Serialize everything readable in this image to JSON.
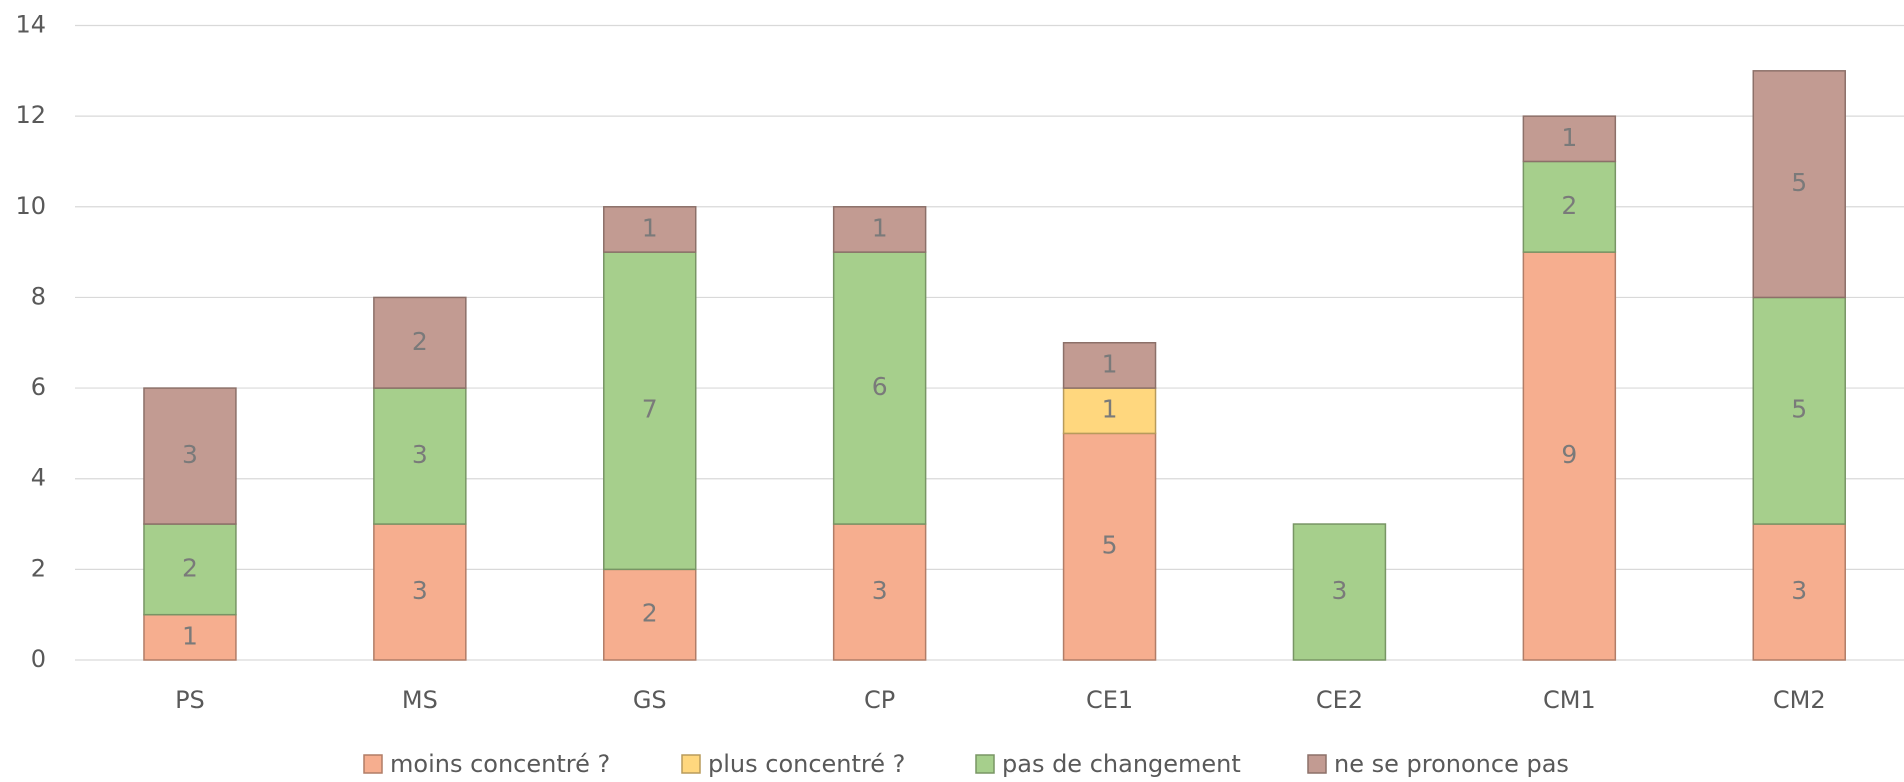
{
  "chart_data": {
    "type": "stacked_bar",
    "categories": [
      "PS",
      "MS",
      "GS",
      "CP",
      "CE1",
      "CE2",
      "CM1",
      "CM2"
    ],
    "series": [
      {
        "name": "moins concentré ?",
        "color": "#f6ae8f",
        "values": [
          1,
          3,
          2,
          3,
          5,
          null,
          9,
          3
        ]
      },
      {
        "name": "plus concentré ?",
        "color": "#ffd77e",
        "values": [
          null,
          null,
          null,
          null,
          1,
          null,
          null,
          null
        ]
      },
      {
        "name": "pas de changement",
        "color": "#a6cf8c",
        "values": [
          2,
          3,
          7,
          6,
          null,
          3,
          2,
          5
        ]
      },
      {
        "name": "ne se prononce pas",
        "color": "#c29b92",
        "values": [
          3,
          2,
          1,
          1,
          1,
          null,
          1,
          5
        ]
      }
    ],
    "ylim": [
      0,
      14
    ],
    "yticks": [
      0,
      2,
      4,
      6,
      8,
      10,
      12,
      14
    ],
    "grid": true,
    "legend": "bottom"
  }
}
